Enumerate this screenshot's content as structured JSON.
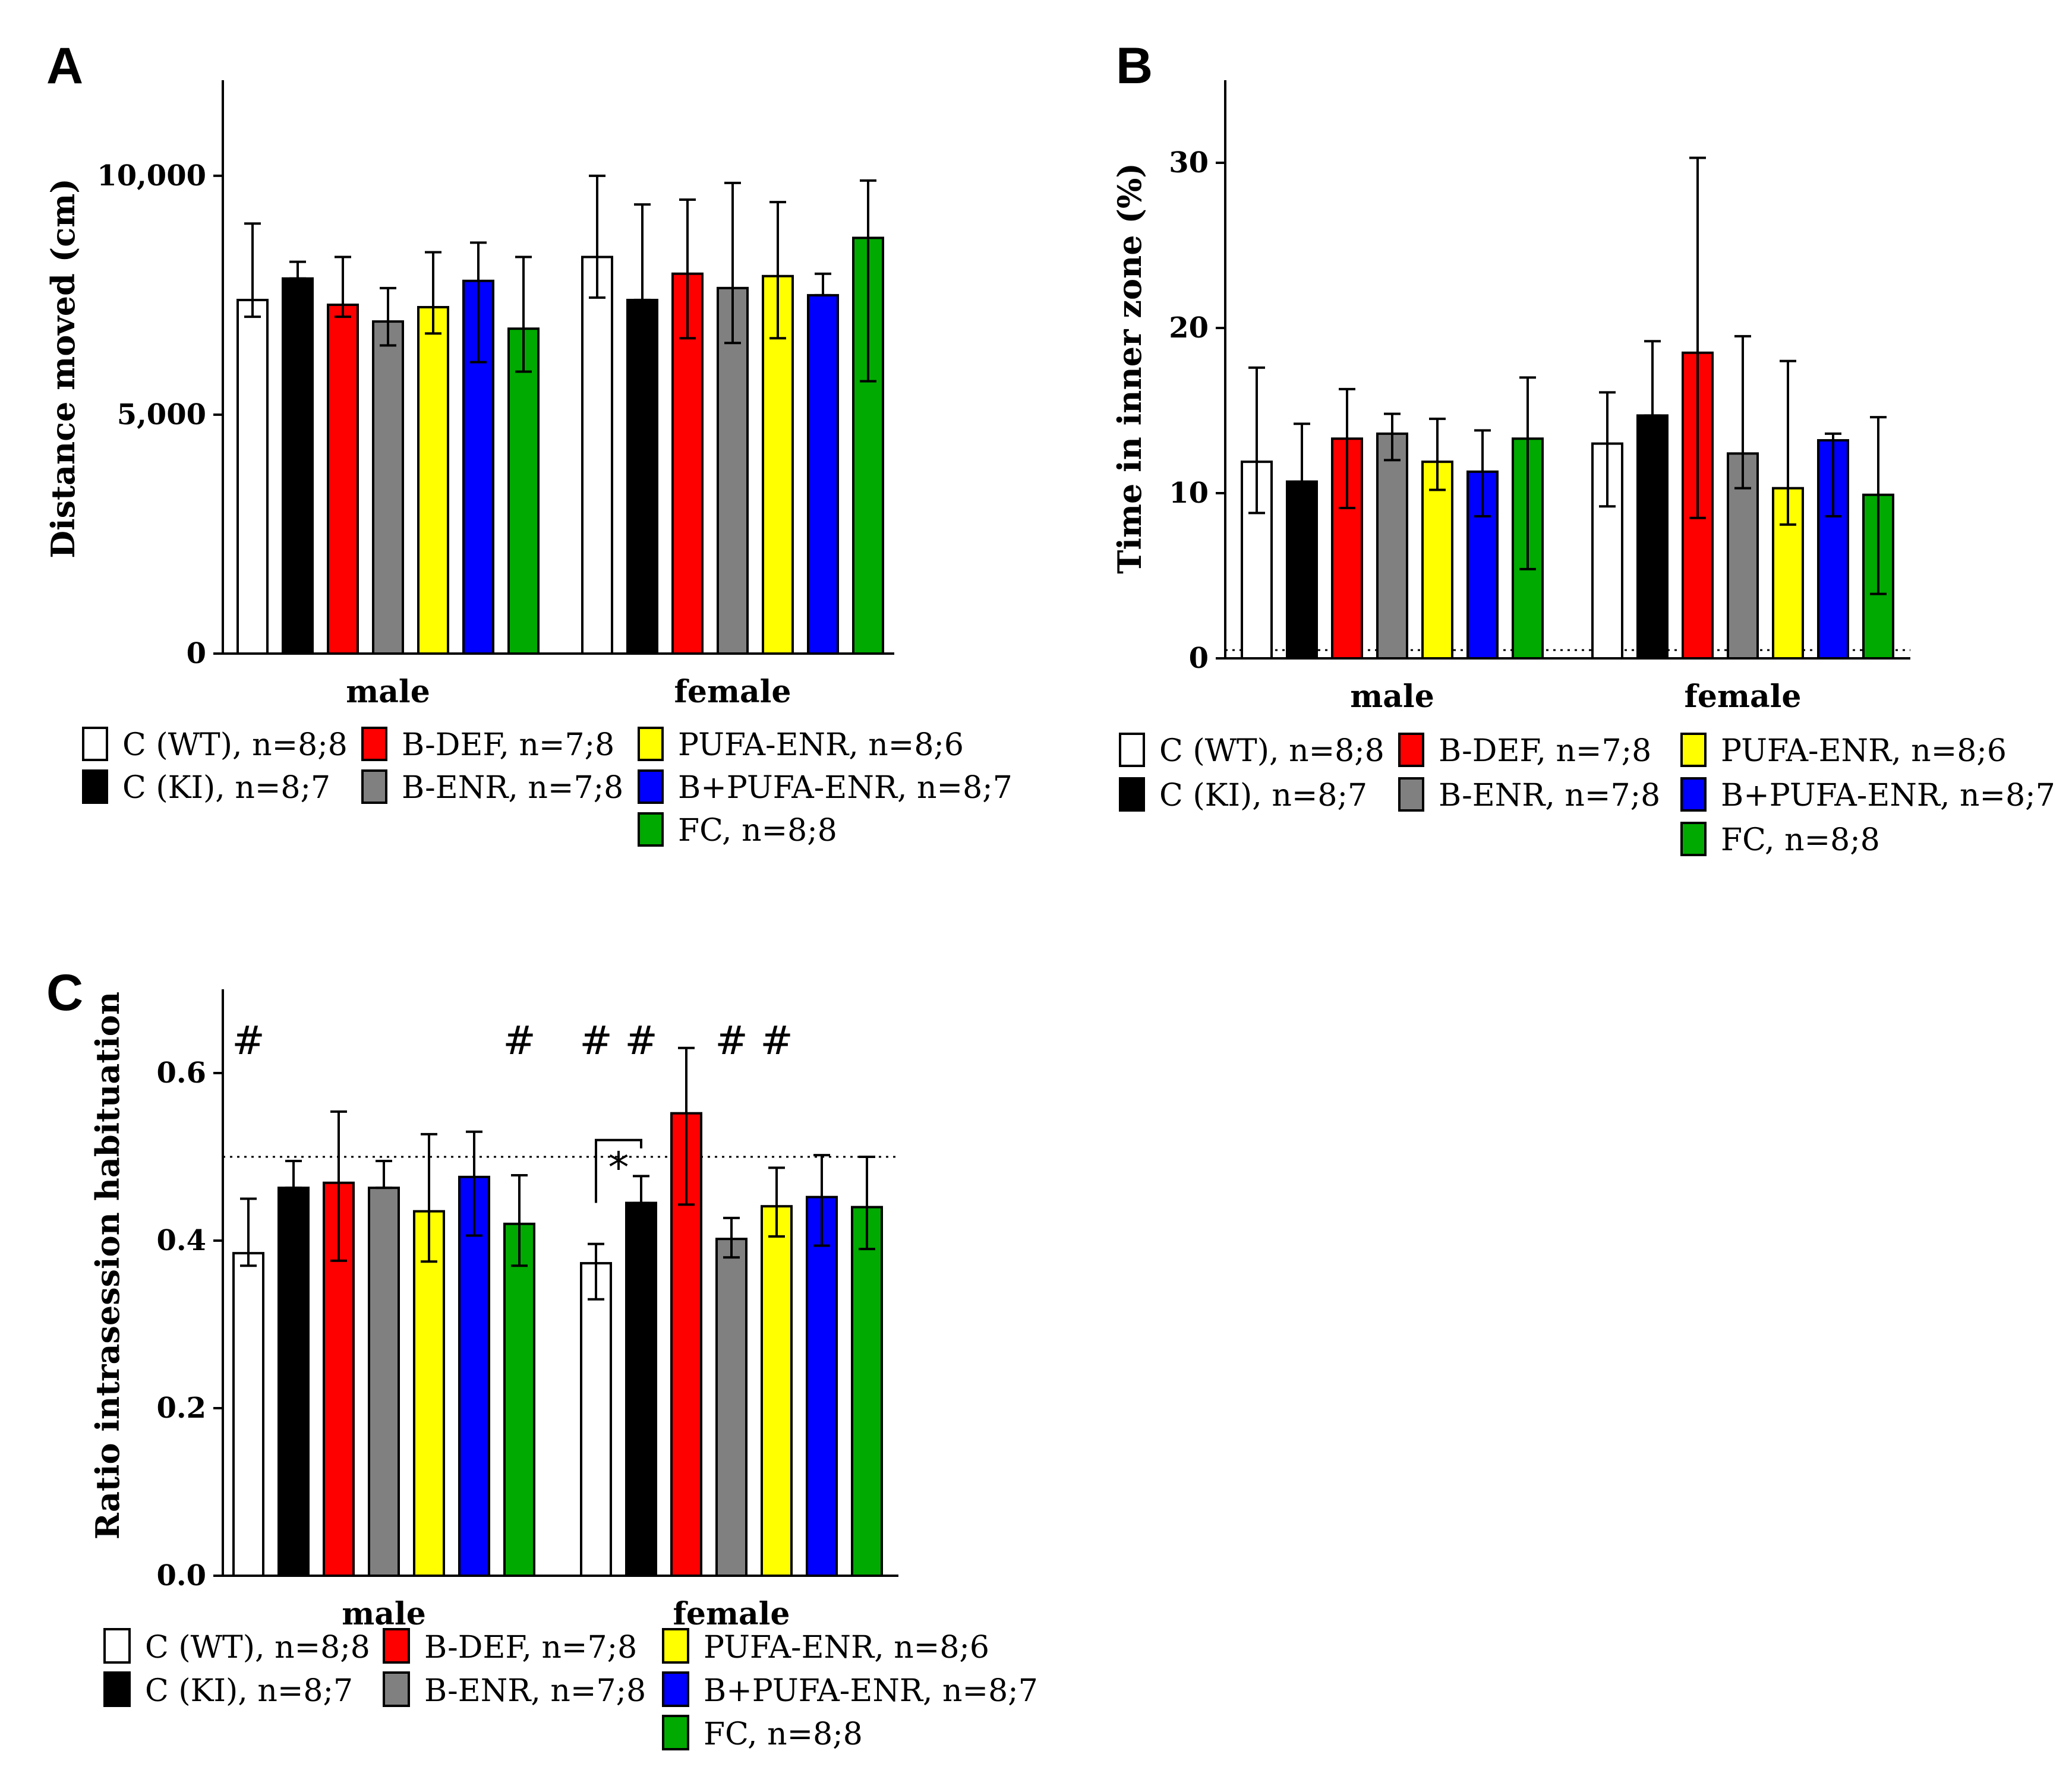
{
  "legend": [
    {
      "label": "C (WT), n=8;8",
      "color": "#ffffff"
    },
    {
      "label": "C (KI), n=8;7",
      "color": "#000000"
    },
    {
      "label": "B-DEF, n=7;8",
      "color": "#ff0000"
    },
    {
      "label": "B-ENR, n=7;8",
      "color": "#808080"
    },
    {
      "label": "PUFA-ENR, n=8;6",
      "color": "#ffff00"
    },
    {
      "label": "B+PUFA-ENR, n=8;7",
      "color": "#0000ff"
    },
    {
      "label": "FC, n=8;8",
      "color": "#00aa00"
    }
  ],
  "chart_data": [
    {
      "panel": "A",
      "type": "bar",
      "categories": [
        "male",
        "female"
      ],
      "ylabel": "Distance moved (cm)",
      "ylim": [
        0,
        12000
      ],
      "yticks": [
        0,
        5000,
        10000
      ],
      "yticklabels": [
        "0",
        "5,000",
        "10,000"
      ],
      "series": [
        {
          "name": "C (WT), n=8;8",
          "values": [
            7400,
            8300
          ],
          "err_low": [
            7050,
            7450
          ],
          "err_high": [
            9000,
            10000
          ]
        },
        {
          "name": "C (KI), n=8;7",
          "values": [
            7850,
            7400
          ],
          "err_low": [
            7850,
            7400
          ],
          "err_high": [
            8200,
            9400
          ]
        },
        {
          "name": "B-DEF, n=7;8",
          "values": [
            7300,
            7950
          ],
          "err_low": [
            7050,
            6600
          ],
          "err_high": [
            8300,
            9500
          ]
        },
        {
          "name": "B-ENR, n=7;8",
          "values": [
            6950,
            7650
          ],
          "err_low": [
            6450,
            6500
          ],
          "err_high": [
            7650,
            9850
          ]
        },
        {
          "name": "PUFA-ENR, n=8;6",
          "values": [
            7250,
            7900
          ],
          "err_low": [
            6700,
            6600
          ],
          "err_high": [
            8400,
            9450
          ]
        },
        {
          "name": "B+PUFA-ENR, n=8;7",
          "values": [
            7800,
            7500
          ],
          "err_low": [
            6100,
            7500
          ],
          "err_high": [
            8600,
            7950
          ]
        },
        {
          "name": "FC, n=8;8",
          "values": [
            6800,
            8700
          ],
          "err_low": [
            5900,
            5700
          ],
          "err_high": [
            8300,
            9900
          ]
        }
      ]
    },
    {
      "panel": "B",
      "type": "bar",
      "categories": [
        "male",
        "female"
      ],
      "ylabel": "Time in inner zone (%)",
      "ylim": [
        0,
        35
      ],
      "yticks": [
        0,
        10,
        20,
        30
      ],
      "yticklabels": [
        "0",
        "10",
        "20",
        "30"
      ],
      "reference_line": 0.5,
      "series": [
        {
          "name": "C (WT), n=8;8",
          "values": [
            11.9,
            13.0
          ],
          "err_low": [
            8.8,
            9.2
          ],
          "err_high": [
            17.6,
            16.1
          ]
        },
        {
          "name": "C (KI), n=8;7",
          "values": [
            10.7,
            14.7
          ],
          "err_low": [
            10.7,
            14.7
          ],
          "err_high": [
            14.2,
            19.2
          ]
        },
        {
          "name": "B-DEF, n=7;8",
          "values": [
            13.3,
            18.5
          ],
          "err_low": [
            9.1,
            8.5
          ],
          "err_high": [
            16.3,
            30.3
          ]
        },
        {
          "name": "B-ENR, n=7;8",
          "values": [
            13.6,
            12.4
          ],
          "err_low": [
            12.0,
            10.3
          ],
          "err_high": [
            14.8,
            19.5
          ]
        },
        {
          "name": "PUFA-ENR, n=8;6",
          "values": [
            11.9,
            10.3
          ],
          "err_low": [
            10.2,
            8.1
          ],
          "err_high": [
            14.5,
            18.0
          ]
        },
        {
          "name": "B+PUFA-ENR, n=8;7",
          "values": [
            11.3,
            13.2
          ],
          "err_low": [
            8.6,
            8.6
          ],
          "err_high": [
            13.8,
            13.6
          ]
        },
        {
          "name": "FC, n=8;8",
          "values": [
            13.3,
            9.9
          ],
          "err_low": [
            5.4,
            3.9
          ],
          "err_high": [
            17.0,
            14.6
          ]
        }
      ]
    },
    {
      "panel": "C",
      "type": "bar",
      "categories": [
        "male",
        "female"
      ],
      "ylabel": "Ratio intrasession habituation",
      "ylim": [
        0,
        0.7
      ],
      "yticks": [
        0,
        0.2,
        0.4,
        0.6
      ],
      "yticklabels": [
        "0.0",
        "0.2",
        "0.4",
        "0.6"
      ],
      "reference_line": 0.5,
      "series": [
        {
          "name": "C (WT), n=8;8",
          "values": [
            0.385,
            0.373
          ],
          "err_low": [
            0.37,
            0.33
          ],
          "err_high": [
            0.45,
            0.396
          ]
        },
        {
          "name": "C (KI), n=8;7",
          "values": [
            0.463,
            0.445
          ],
          "err_low": [
            0.463,
            0.445
          ],
          "err_high": [
            0.495,
            0.477
          ]
        },
        {
          "name": "B-DEF, n=7;8",
          "values": [
            0.469,
            0.552
          ],
          "err_low": [
            0.376,
            0.443
          ],
          "err_high": [
            0.554,
            0.63
          ]
        },
        {
          "name": "B-ENR, n=7;8",
          "values": [
            0.463,
            0.402
          ],
          "err_low": [
            0.463,
            0.38
          ],
          "err_high": [
            0.495,
            0.427
          ]
        },
        {
          "name": "PUFA-ENR, n=8;6",
          "values": [
            0.435,
            0.441
          ],
          "err_low": [
            0.375,
            0.405
          ],
          "err_high": [
            0.527,
            0.487
          ]
        },
        {
          "name": "B+PUFA-ENR, n=8;7",
          "values": [
            0.476,
            0.452
          ],
          "err_low": [
            0.406,
            0.394
          ],
          "err_high": [
            0.53,
            0.502
          ]
        },
        {
          "name": "FC, n=8;8",
          "values": [
            0.42,
            0.44
          ],
          "err_low": [
            0.37,
            0.39
          ],
          "err_high": [
            0.478,
            0.5
          ]
        }
      ],
      "annotations": {
        "hash_symbol": "#",
        "hash_bars": [
          [
            0,
            0
          ],
          [
            6,
            0
          ],
          [
            0,
            1
          ],
          [
            1,
            1
          ],
          [
            3,
            1
          ],
          [
            4,
            1
          ]
        ],
        "significance_symbol": "*",
        "significance_between": [
          [
            0,
            1
          ],
          [
            1,
            1
          ]
        ]
      }
    }
  ]
}
